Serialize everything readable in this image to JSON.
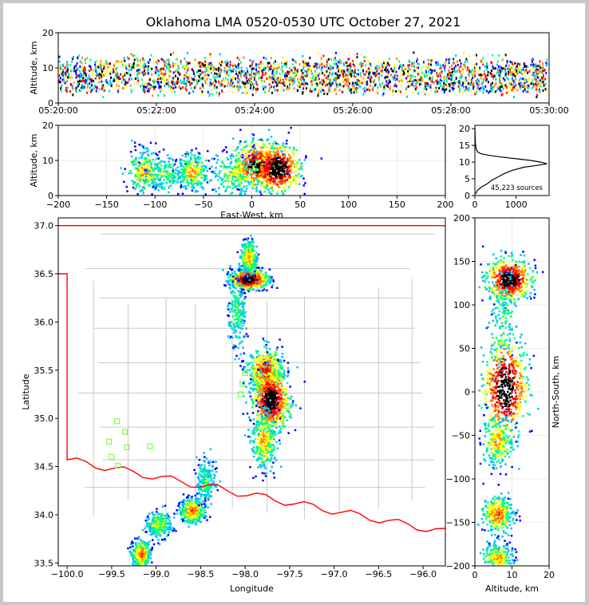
{
  "chart_data": [
    {
      "type": "scatter",
      "panel": "altitude-vs-time",
      "title": "Oklahoma LMA 0520-0530 UTC October 27, 2021",
      "xlabel": "",
      "ylabel": "Altitude, km",
      "xlim": [
        "05:20:00",
        "05:30:00"
      ],
      "ylim": [
        0,
        20
      ],
      "xticks": [
        "05:20:00",
        "05:22:00",
        "05:24:00",
        "05:26:00",
        "05:28:00",
        "05:30:00"
      ],
      "yticks": [
        0,
        10,
        20
      ],
      "band_altitude_km": [
        2,
        16
      ],
      "core_altitude_km": [
        4,
        12
      ],
      "density_colormap": [
        "#0000ff",
        "#00bfff",
        "#00ff80",
        "#ffff00",
        "#ff8000",
        "#ff0000",
        "#000000"
      ]
    },
    {
      "type": "scatter",
      "panel": "altitude-vs-east-west",
      "xlabel": "East-West, km",
      "ylabel": "Altitude, km",
      "xlim": [
        -200,
        200
      ],
      "ylim": [
        0,
        20
      ],
      "xticks": [
        -200,
        -150,
        -100,
        -50,
        0,
        50,
        100,
        150,
        200
      ],
      "yticks": [
        0,
        10,
        20
      ],
      "clusters": [
        {
          "x": -112,
          "y": 7,
          "spread_x": 8,
          "spread_y": 3,
          "density": 0.5
        },
        {
          "x": -90,
          "y": 6,
          "spread_x": 12,
          "spread_y": 2.5,
          "density": 0.3
        },
        {
          "x": -62,
          "y": 7,
          "spread_x": 8,
          "spread_y": 2.5,
          "density": 0.5
        },
        {
          "x": -20,
          "y": 6,
          "spread_x": 12,
          "spread_y": 3,
          "density": 0.4
        },
        {
          "x": 5,
          "y": 9,
          "spread_x": 12,
          "spread_y": 3.5,
          "density": 0.9
        },
        {
          "x": 25,
          "y": 8,
          "spread_x": 12,
          "spread_y": 3.5,
          "density": 1.0
        }
      ]
    },
    {
      "type": "line",
      "panel": "altitude-histogram",
      "annotation": "45,223 sources",
      "xlim": [
        0,
        1800
      ],
      "ylim": [
        0,
        21
      ],
      "xticks": [
        0,
        1000
      ],
      "yticks": [
        0,
        5,
        10,
        15,
        20
      ],
      "profile": [
        {
          "alt": 0.5,
          "count": 20
        },
        {
          "alt": 1.5,
          "count": 60
        },
        {
          "alt": 2.5,
          "count": 150
        },
        {
          "alt": 3.5,
          "count": 300
        },
        {
          "alt": 4.5,
          "count": 400
        },
        {
          "alt": 5.5,
          "count": 550
        },
        {
          "alt": 6.5,
          "count": 700
        },
        {
          "alt": 7.5,
          "count": 900
        },
        {
          "alt": 8.5,
          "count": 1200
        },
        {
          "alt": 9.0,
          "count": 1500
        },
        {
          "alt": 9.5,
          "count": 1750
        },
        {
          "alt": 10.0,
          "count": 1600
        },
        {
          "alt": 10.5,
          "count": 1350
        },
        {
          "alt": 11.0,
          "count": 1000
        },
        {
          "alt": 11.5,
          "count": 650
        },
        {
          "alt": 12.0,
          "count": 350
        },
        {
          "alt": 12.5,
          "count": 150
        },
        {
          "alt": 13.0,
          "count": 70
        },
        {
          "alt": 14.0,
          "count": 30
        },
        {
          "alt": 16.0,
          "count": 10
        },
        {
          "alt": 18.0,
          "count": 5
        },
        {
          "alt": 20.0,
          "count": 2
        }
      ]
    },
    {
      "type": "scatter",
      "panel": "plan-view-map",
      "xlabel": "Longitude",
      "ylabel": "Latitude",
      "xlim": [
        -100.1,
        -95.75
      ],
      "ylim": [
        33.47,
        37.08
      ],
      "xticks": [
        -100.0,
        -99.5,
        -99.0,
        -98.5,
        -98.0,
        -97.5,
        -97.0,
        -96.5,
        -96.0
      ],
      "yticks": [
        33.5,
        34.0,
        34.5,
        35.0,
        35.5,
        36.0,
        36.5,
        37.0
      ],
      "tick_labels_x": [
        "−100.0",
        "−99.5",
        "−99.0",
        "−98.5",
        "−98.0",
        "−97.5",
        "−97.0",
        "−96.5",
        "−96.0"
      ],
      "tick_labels_y": [
        "33.5",
        "34.0",
        "34.5",
        "35.0",
        "35.5",
        "36.0",
        "36.5",
        "37.0"
      ],
      "state_border_color": "#ff0000",
      "county_line_color": "#c8c8c8",
      "station_color": "#80ff40",
      "stations": [
        {
          "lon": -99.44,
          "lat": 34.97
        },
        {
          "lon": -99.35,
          "lat": 34.86
        },
        {
          "lon": -99.53,
          "lat": 34.76
        },
        {
          "lon": -99.33,
          "lat": 34.7
        },
        {
          "lon": -99.5,
          "lat": 34.6
        },
        {
          "lon": -99.43,
          "lat": 34.51
        },
        {
          "lon": -99.07,
          "lat": 34.71
        },
        {
          "lon": -98.0,
          "lat": 35.47
        },
        {
          "lon": -98.03,
          "lat": 35.36
        },
        {
          "lon": -98.05,
          "lat": 35.25
        },
        {
          "lon": -97.52,
          "lat": 35.13
        }
      ],
      "clusters": [
        {
          "lon": -97.97,
          "lat": 36.45,
          "slon": 0.1,
          "slat": 0.05,
          "density": 1.0
        },
        {
          "lon": -97.97,
          "lat": 36.68,
          "slon": 0.05,
          "slat": 0.08,
          "density": 0.5
        },
        {
          "lon": -98.1,
          "lat": 36.1,
          "slon": 0.05,
          "slat": 0.18,
          "density": 0.3
        },
        {
          "lon": -97.78,
          "lat": 35.5,
          "slon": 0.1,
          "slat": 0.12,
          "density": 0.7
        },
        {
          "lon": -97.72,
          "lat": 35.2,
          "slon": 0.1,
          "slat": 0.15,
          "density": 1.0
        },
        {
          "lon": -97.8,
          "lat": 34.78,
          "slon": 0.07,
          "slat": 0.15,
          "density": 0.5
        },
        {
          "lon": -98.6,
          "lat": 34.05,
          "slon": 0.07,
          "slat": 0.06,
          "density": 0.6
        },
        {
          "lon": -98.45,
          "lat": 34.35,
          "slon": 0.05,
          "slat": 0.12,
          "density": 0.3
        },
        {
          "lon": -98.98,
          "lat": 33.9,
          "slon": 0.07,
          "slat": 0.07,
          "density": 0.4
        },
        {
          "lon": -99.18,
          "lat": 33.6,
          "slon": 0.05,
          "slat": 0.07,
          "density": 0.6
        }
      ]
    },
    {
      "type": "scatter",
      "panel": "north-south-vs-altitude",
      "xlabel": "Altitude, km",
      "ylabel": "North-South, km",
      "xlim": [
        0,
        20
      ],
      "ylim": [
        -200,
        200
      ],
      "xticks": [
        0,
        10,
        20
      ],
      "yticks": [
        -200,
        -150,
        -100,
        -50,
        0,
        50,
        100,
        150,
        200
      ],
      "clusters": [
        {
          "x": 9,
          "y": 130,
          "spread_x": 3,
          "spread_y": 12,
          "density": 1.0
        },
        {
          "x": 7,
          "y": 80,
          "spread_x": 2,
          "spread_y": 30,
          "density": 0.3
        },
        {
          "x": 8,
          "y": 5,
          "spread_x": 3,
          "spread_y": 28,
          "density": 1.0
        },
        {
          "x": 6,
          "y": -55,
          "spread_x": 2,
          "spread_y": 15,
          "density": 0.5
        },
        {
          "x": 6,
          "y": -140,
          "spread_x": 2,
          "spread_y": 10,
          "density": 0.6
        },
        {
          "x": 6,
          "y": -190,
          "spread_x": 2,
          "spread_y": 8,
          "density": 0.5
        }
      ]
    }
  ]
}
